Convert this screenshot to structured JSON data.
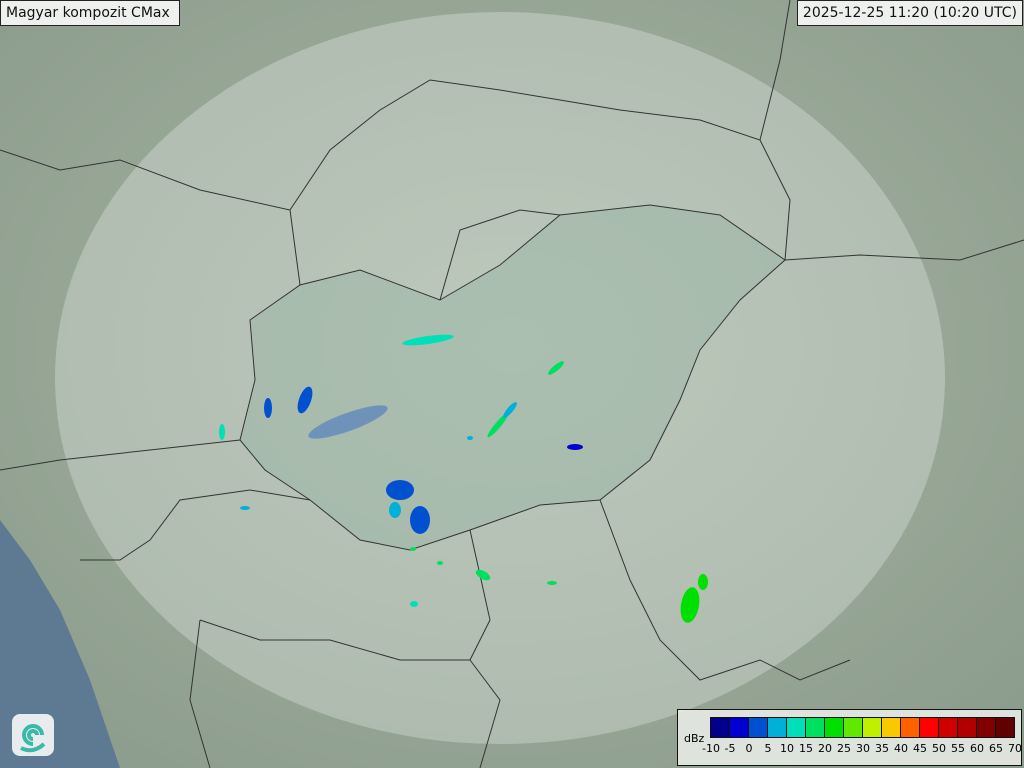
{
  "title": "Magyar kompozit  CMax",
  "timestamp": "2025-12-25 11:20 (10:20 UTC)",
  "legend": {
    "unit": "dBz",
    "ticks": [
      "-10",
      "-5",
      "0",
      "5",
      "10",
      "15",
      "20",
      "25",
      "30",
      "35",
      "40",
      "45",
      "50",
      "55",
      "60",
      "65",
      "70"
    ],
    "colors": [
      "#00008c",
      "#0000d0",
      "#0050d0",
      "#00b0d8",
      "#00e0b8",
      "#00e060",
      "#00e000",
      "#60e800",
      "#c0f000",
      "#f8c800",
      "#ff6000",
      "#ff0000",
      "#d00000",
      "#b00000",
      "#800000",
      "#600000"
    ]
  },
  "logo": "omsz-swirl-logo"
}
